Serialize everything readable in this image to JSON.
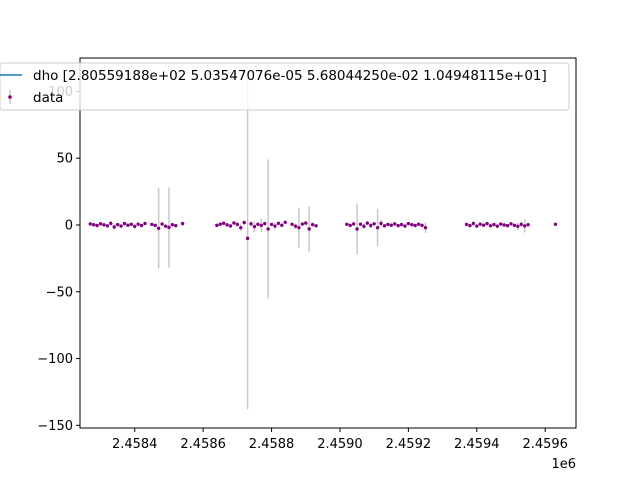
{
  "chart_data": {
    "type": "scatter",
    "title": "",
    "xlabel": "",
    "ylabel": "",
    "x_offset_label": "1e6",
    "xlim": [
      2.45824,
      2.45969
    ],
    "ylim": [
      -152,
      125
    ],
    "x_ticks": [
      2.4584,
      2.4586,
      2.4588,
      2.459,
      2.4592,
      2.4594,
      2.4596
    ],
    "x_tick_labels": [
      "2.4584",
      "2.4586",
      "2.4588",
      "2.4590",
      "2.4592",
      "2.4594",
      "2.4596"
    ],
    "y_ticks": [
      -150,
      -100,
      -50,
      0,
      50,
      100
    ],
    "y_tick_labels": [
      "−150",
      "−100",
      "−50",
      "0",
      "50",
      "100"
    ],
    "grid": false,
    "legend": {
      "placement": "top-left",
      "entries": [
        {
          "label": "dho [2.80559188e+02 5.03547076e-05 5.68044250e-02 1.04948115e+01]",
          "kind": "line",
          "color": "#1f77b4"
        },
        {
          "label": "data",
          "kind": "errorbar",
          "color": "#800080"
        }
      ]
    },
    "series": [
      {
        "name": "dho [2.80559188e+02 5.03547076e-05 5.68044250e-02 1.04948115e+01]",
        "type": "line",
        "color": "#1f77b4",
        "values": []
      },
      {
        "name": "data",
        "type": "errorbar",
        "color": "#800080",
        "errorbar_color": "#c8c8c8",
        "points": [
          [
            2.45827,
            0.8,
            0.6
          ],
          [
            2.45828,
            0.2,
            0.5
          ],
          [
            2.45829,
            -0.4,
            0.6
          ],
          [
            2.4583,
            0.9,
            1.2
          ],
          [
            2.45831,
            0.1,
            0.8
          ],
          [
            2.45832,
            -0.6,
            0.9
          ],
          [
            2.45833,
            1.2,
            1.5
          ],
          [
            2.45834,
            -1.5,
            2.0
          ],
          [
            2.45835,
            0.3,
            1.0
          ],
          [
            2.45836,
            -0.8,
            1.2
          ],
          [
            2.45837,
            1.0,
            0.8
          ],
          [
            2.45838,
            -0.2,
            0.7
          ],
          [
            2.45839,
            0.5,
            1.1
          ],
          [
            2.4584,
            -1.1,
            1.6
          ],
          [
            2.45841,
            0.6,
            0.9
          ],
          [
            2.45842,
            -0.4,
            0.8
          ],
          [
            2.45843,
            1.1,
            1.0
          ],
          [
            2.45845,
            0.4,
            0.6
          ],
          [
            2.45846,
            -0.3,
            0.7
          ],
          [
            2.45847,
            -2.5,
            30
          ],
          [
            2.45848,
            0.7,
            1.2
          ],
          [
            2.45849,
            -0.9,
            1.4
          ],
          [
            2.4585,
            -1.8,
            30
          ],
          [
            2.45851,
            0.2,
            0.8
          ],
          [
            2.45852,
            -0.5,
            0.9
          ],
          [
            2.45854,
            1.0,
            0.6
          ],
          [
            2.45864,
            -0.3,
            0.5
          ],
          [
            2.45865,
            0.6,
            0.8
          ],
          [
            2.45866,
            1.3,
            1.0
          ],
          [
            2.45867,
            0.1,
            1.2
          ],
          [
            2.45868,
            -0.7,
            1.5
          ],
          [
            2.45869,
            1.5,
            1.2
          ],
          [
            2.4587,
            0.4,
            1.8
          ],
          [
            2.45871,
            -2.0,
            2.5
          ],
          [
            2.45872,
            1.8,
            1.5
          ],
          [
            2.45873,
            -10.0,
            128
          ],
          [
            2.45874,
            0.9,
            2.0
          ],
          [
            2.45875,
            -1.2,
            4.0
          ],
          [
            2.45876,
            0.5,
            1.5
          ],
          [
            2.45877,
            -0.3,
            5.0
          ],
          [
            2.45878,
            1.0,
            1.2
          ],
          [
            2.45879,
            -3.0,
            52
          ],
          [
            2.4588,
            0.4,
            1.0
          ],
          [
            2.45881,
            -0.8,
            2.5
          ],
          [
            2.45882,
            1.2,
            1.0
          ],
          [
            2.45883,
            -0.2,
            0.8
          ],
          [
            2.45884,
            2.0,
            0.7
          ],
          [
            2.45886,
            0.5,
            0.9
          ],
          [
            2.45887,
            -0.9,
            2.0
          ],
          [
            2.45888,
            -2.0,
            15
          ],
          [
            2.45889,
            0.7,
            1.2
          ],
          [
            2.4589,
            1.4,
            1.5
          ],
          [
            2.45891,
            -3.0,
            17
          ],
          [
            2.45892,
            0.3,
            1.0
          ],
          [
            2.45893,
            -0.6,
            1.0
          ],
          [
            2.45902,
            0.5,
            1.0
          ],
          [
            2.45903,
            -0.3,
            0.9
          ],
          [
            2.45904,
            0.8,
            1.5
          ],
          [
            2.45905,
            -3.0,
            19
          ],
          [
            2.45906,
            0.6,
            1.0
          ],
          [
            2.45907,
            -1.0,
            2.0
          ],
          [
            2.45908,
            1.4,
            1.6
          ],
          [
            2.45909,
            -0.4,
            2.0
          ],
          [
            2.4591,
            0.9,
            1.2
          ],
          [
            2.45911,
            -2.0,
            14
          ],
          [
            2.45912,
            1.2,
            2.5
          ],
          [
            2.45913,
            -0.6,
            1.4
          ],
          [
            2.45914,
            0.4,
            1.0
          ],
          [
            2.45915,
            -0.2,
            0.9
          ],
          [
            2.45916,
            0.8,
            1.1
          ],
          [
            2.45917,
            -0.5,
            0.8
          ],
          [
            2.45918,
            0.3,
            1.0
          ],
          [
            2.45919,
            -0.8,
            1.3
          ],
          [
            2.4592,
            1.0,
            0.9
          ],
          [
            2.45921,
            0.2,
            0.7
          ],
          [
            2.45922,
            -0.4,
            1.2
          ],
          [
            2.45923,
            0.6,
            1.0
          ],
          [
            2.45924,
            -0.3,
            0.8
          ],
          [
            2.45925,
            -2.0,
            4.0
          ],
          [
            2.45937,
            0.4,
            0.8
          ],
          [
            2.45938,
            -0.5,
            1.0
          ],
          [
            2.45939,
            1.1,
            1.5
          ],
          [
            2.4594,
            -0.8,
            1.2
          ],
          [
            2.45941,
            0.6,
            1.0
          ],
          [
            2.45942,
            -0.2,
            0.8
          ],
          [
            2.45943,
            1.0,
            1.2
          ],
          [
            2.45944,
            -0.6,
            1.0
          ],
          [
            2.45945,
            0.3,
            0.9
          ],
          [
            2.45946,
            -0.9,
            1.4
          ],
          [
            2.45947,
            0.7,
            1.0
          ],
          [
            2.45948,
            0.0,
            0.8
          ],
          [
            2.45949,
            -0.5,
            1.1
          ],
          [
            2.4595,
            0.9,
            1.0
          ],
          [
            2.45951,
            -0.3,
            1.2
          ],
          [
            2.45952,
            -1.0,
            3.0
          ],
          [
            2.45953,
            0.5,
            2.0
          ],
          [
            2.45954,
            -0.7,
            5.0
          ],
          [
            2.45955,
            0.2,
            1.0
          ],
          [
            2.45963,
            0.5,
            0.8
          ]
        ]
      }
    ]
  }
}
